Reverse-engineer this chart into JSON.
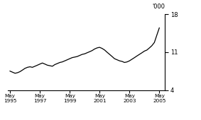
{
  "title": "",
  "ylabel": "'000",
  "ylim": [
    4,
    18
  ],
  "yticks": [
    4,
    11,
    18
  ],
  "xlim_start": 1995.2,
  "xlim_end": 2005.7,
  "xtick_years": [
    1995,
    1997,
    1999,
    2001,
    2003,
    2005
  ],
  "line_color": "#000000",
  "line_width": 0.9,
  "background_color": "#ffffff",
  "data_x": [
    1995.33,
    1995.5,
    1995.67,
    1995.83,
    1996.0,
    1996.17,
    1996.33,
    1996.5,
    1996.67,
    1996.83,
    1997.0,
    1997.17,
    1997.33,
    1997.5,
    1997.67,
    1997.83,
    1998.0,
    1998.17,
    1998.33,
    1998.5,
    1998.67,
    1998.83,
    1999.0,
    1999.17,
    1999.33,
    1999.5,
    1999.67,
    1999.83,
    2000.0,
    2000.17,
    2000.33,
    2000.5,
    2000.67,
    2000.83,
    2001.0,
    2001.17,
    2001.33,
    2001.5,
    2001.67,
    2001.83,
    2002.0,
    2002.17,
    2002.33,
    2002.5,
    2002.67,
    2002.83,
    2003.0,
    2003.17,
    2003.33,
    2003.5,
    2003.67,
    2003.83,
    2004.0,
    2004.17,
    2004.33,
    2004.5,
    2004.67,
    2004.83,
    2005.0,
    2005.17,
    2005.33
  ],
  "data_y": [
    7.5,
    7.3,
    7.1,
    7.2,
    7.4,
    7.7,
    8.0,
    8.2,
    8.3,
    8.2,
    8.4,
    8.6,
    8.8,
    9.0,
    8.8,
    8.6,
    8.5,
    8.4,
    8.7,
    8.9,
    9.1,
    9.2,
    9.4,
    9.6,
    9.8,
    10.0,
    10.1,
    10.2,
    10.4,
    10.6,
    10.7,
    10.9,
    11.1,
    11.3,
    11.6,
    11.8,
    11.9,
    11.7,
    11.4,
    11.0,
    10.6,
    10.2,
    9.8,
    9.6,
    9.4,
    9.3,
    9.1,
    9.2,
    9.4,
    9.7,
    10.0,
    10.3,
    10.6,
    10.9,
    11.2,
    11.4,
    11.8,
    12.2,
    12.8,
    14.2,
    15.5
  ]
}
